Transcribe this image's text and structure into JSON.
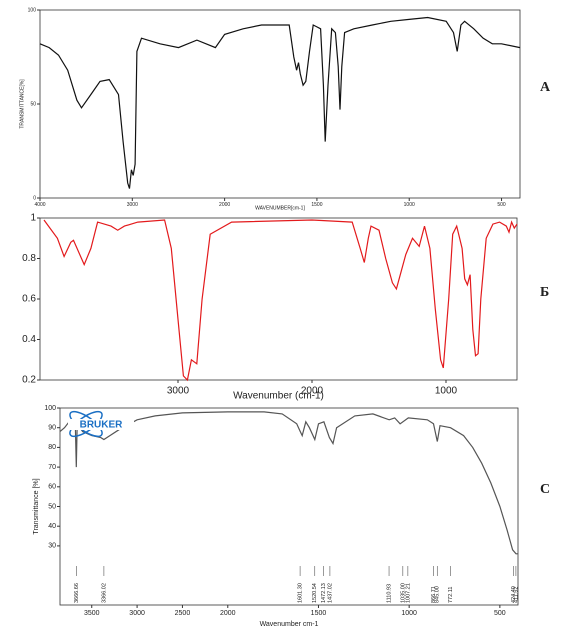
{
  "chart_data": [
    {
      "type": "line",
      "panel_label": "A",
      "color": "#111111",
      "y_label": "TRANSMITTANCE[%]",
      "x_label": "WAVENUMBER[cm-1]",
      "xlim": [
        4000,
        400
      ],
      "x_scale_break": 2000,
      "ylim": [
        0,
        100
      ],
      "xticks": [
        4000,
        3000,
        2000,
        1500,
        1000,
        500
      ],
      "yticks": [
        0,
        50,
        100
      ],
      "x": [
        4000,
        3900,
        3800,
        3700,
        3600,
        3550,
        3450,
        3350,
        3250,
        3150,
        3100,
        3050,
        3030,
        3010,
        2990,
        2970,
        2950,
        2900,
        2700,
        2500,
        2300,
        2100,
        2000,
        1900,
        1800,
        1700,
        1650,
        1625,
        1610,
        1600,
        1590,
        1575,
        1560,
        1540,
        1520,
        1500,
        1480,
        1465,
        1455,
        1440,
        1420,
        1400,
        1385,
        1375,
        1365,
        1350,
        1300,
        1200,
        1100,
        1000,
        900,
        800,
        760,
        740,
        720,
        700,
        650,
        600,
        550,
        500,
        400
      ],
      "values": [
        82,
        80,
        76,
        68,
        52,
        48,
        55,
        62,
        63,
        55,
        30,
        8,
        5,
        15,
        12,
        18,
        78,
        85,
        82,
        80,
        84,
        80,
        87,
        90,
        92,
        92,
        92,
        75,
        68,
        72,
        66,
        60,
        62,
        78,
        92,
        91,
        90,
        60,
        30,
        60,
        90,
        88,
        70,
        47,
        70,
        88,
        90,
        92,
        94,
        95,
        96,
        94,
        88,
        78,
        92,
        94,
        90,
        85,
        82,
        82,
        80
      ]
    },
    {
      "type": "line",
      "panel_label": "Б",
      "color": "#e31a1c",
      "x_label": "Wavenumber (cm-1)",
      "xlim": [
        4030,
        470
      ],
      "ylim": [
        0.2,
        1
      ],
      "xticks": [
        3000,
        2000,
        1000
      ],
      "yticks": [
        0.2,
        0.4,
        0.6,
        0.8,
        1
      ],
      "x": [
        4000,
        3900,
        3850,
        3800,
        3780,
        3720,
        3700,
        3650,
        3600,
        3500,
        3450,
        3400,
        3300,
        3100,
        3050,
        3000,
        2960,
        2930,
        2900,
        2860,
        2820,
        2760,
        2600,
        2000,
        1700,
        1640,
        1610,
        1580,
        1560,
        1500,
        1450,
        1400,
        1370,
        1300,
        1250,
        1200,
        1160,
        1120,
        1080,
        1040,
        1020,
        980,
        950,
        920,
        880,
        860,
        840,
        820,
        800,
        780,
        760,
        740,
        700,
        650,
        600,
        550,
        530,
        510,
        490,
        470
      ],
      "values": [
        0.99,
        0.9,
        0.81,
        0.88,
        0.89,
        0.8,
        0.77,
        0.85,
        0.98,
        0.96,
        0.94,
        0.96,
        0.98,
        0.99,
        0.85,
        0.5,
        0.22,
        0.2,
        0.3,
        0.28,
        0.6,
        0.92,
        0.98,
        0.99,
        0.98,
        0.85,
        0.78,
        0.9,
        0.96,
        0.94,
        0.8,
        0.68,
        0.65,
        0.82,
        0.9,
        0.86,
        0.96,
        0.85,
        0.55,
        0.3,
        0.26,
        0.6,
        0.92,
        0.96,
        0.85,
        0.7,
        0.67,
        0.72,
        0.45,
        0.32,
        0.33,
        0.6,
        0.9,
        0.97,
        0.98,
        0.96,
        0.93,
        0.98,
        0.95,
        0.97
      ]
    },
    {
      "type": "line",
      "panel_label": "C",
      "color": "#555555",
      "logo": "BRUKER",
      "y_label": "Transmittance [%]",
      "x_label": "Wavenumber cm-1",
      "xlim": [
        3850,
        400
      ],
      "x_scale_break": 2000,
      "ylim": [
        0,
        100
      ],
      "xticks": [
        3500,
        3000,
        2500,
        2000,
        1500,
        1000,
        500
      ],
      "yticks": [
        30,
        40,
        50,
        60,
        70,
        80,
        90,
        100
      ],
      "x": [
        3850,
        3800,
        3750,
        3700,
        3680,
        3670,
        3660,
        3600,
        3500,
        3400,
        3366,
        3300,
        3200,
        3000,
        2800,
        2500,
        2000,
        1800,
        1700,
        1620,
        1600,
        1590,
        1570,
        1550,
        1520,
        1500,
        1470,
        1440,
        1420,
        1400,
        1300,
        1200,
        1110,
        1080,
        1050,
        1005,
        900,
        866,
        845,
        830,
        772,
        700,
        650,
        600,
        550,
        500,
        460,
        430,
        411,
        400
      ],
      "values": [
        88,
        90,
        93,
        94,
        90,
        70,
        92,
        88,
        86,
        85,
        84,
        86,
        89,
        94,
        96,
        97.5,
        98,
        98,
        97,
        92,
        88,
        86,
        93,
        90,
        84,
        92,
        93,
        85,
        82,
        90,
        96,
        97,
        94,
        95,
        92,
        95,
        94,
        92,
        83,
        91,
        90,
        86,
        80,
        72,
        62,
        50,
        38,
        28,
        26,
        26
      ],
      "peaks": [
        3666.66,
        3366.02,
        1601.3,
        1520.54,
        1472.13,
        1437.02,
        1110.93,
        1035,
        1007.21,
        866.71,
        845,
        772.11,
        424.4,
        411.52
      ],
      "peak_labels": [
        "3666.66",
        "3366.02",
        "1601.30",
        "1520.54",
        "1472.13",
        "1437.02",
        "1110.93",
        "1035.00",
        "1007.21",
        "866.71",
        "845.00",
        "772.11",
        "424.40",
        "411.52"
      ]
    }
  ]
}
